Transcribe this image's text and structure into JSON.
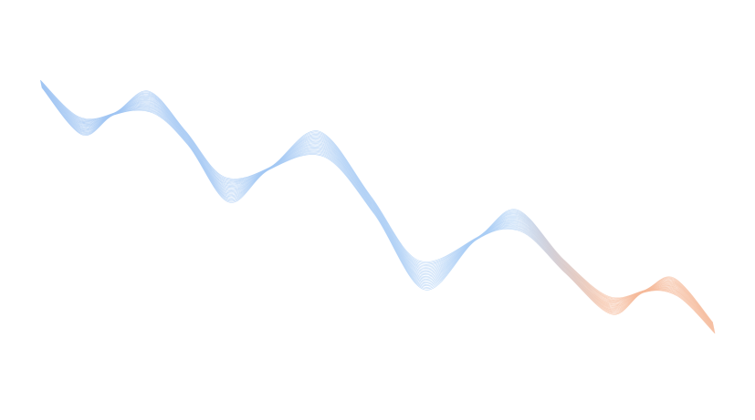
{
  "graphic": {
    "description_type": "decorative-wave-lines",
    "colors": {
      "background": "#ffffff",
      "start": "#9cc2f2",
      "middle": "#a9cdf5",
      "end": "#f5b999"
    },
    "line_count": 22
  }
}
